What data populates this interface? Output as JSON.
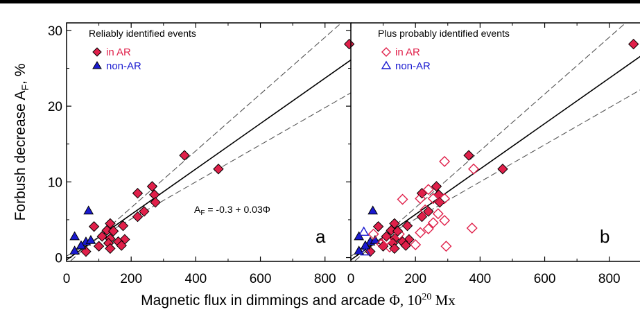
{
  "colors": {
    "in_ar": "#e0204a",
    "non_ar": "#1a1ad0",
    "fit": "#000000",
    "band": "#555555"
  },
  "icons": {
    "in_ar_filled": "diamond-filled-icon",
    "non_ar_filled": "triangle-filled-icon",
    "in_ar_open": "diamond-open-icon",
    "non_ar_open": "triangle-open-icon"
  },
  "chart_data": [
    {
      "type": "scatter",
      "panel_letter": "a",
      "legend_title": "Reliably identified events",
      "legend": [
        {
          "label": "in AR",
          "marker": "diamond",
          "filled": true,
          "color": "#e0204a"
        },
        {
          "label": "non-AR",
          "marker": "triangle",
          "filled": true,
          "color": "#1a1ad0"
        }
      ],
      "formula": {
        "lhs": "A",
        "sub": "F",
        "rhs": " = -0.3 + 0.03Φ"
      },
      "ylabel": {
        "text": "Forbush decrease A",
        "sub": "F",
        "suffix": ", %"
      },
      "xlabel": {
        "text": "Magnetic flux in dimmings and arcade  ",
        "serif": "Φ, 10",
        "sup": "20",
        "serif2": " Mx"
      },
      "xlim": [
        0,
        880
      ],
      "ylim": [
        -0.5,
        31
      ],
      "xticks": [
        0,
        200,
        400,
        600,
        800
      ],
      "yticks": [
        0,
        10,
        20,
        30
      ],
      "fit_line": {
        "intercept": -0.3,
        "slope": 0.03
      },
      "band_upper": {
        "intercept": -0.9,
        "slope": 0.0375
      },
      "band_lower": {
        "intercept": 0.2,
        "slope": 0.0245
      },
      "series": [
        {
          "name": "in AR",
          "marker": "diamond",
          "filled": true,
          "color": "#e0204a",
          "points": [
            [
              875,
              28.2
            ],
            [
              365,
              13.5
            ],
            [
              470,
              11.7
            ],
            [
              265,
              9.4
            ],
            [
              220,
              8.5
            ],
            [
              272,
              8.3
            ],
            [
              275,
              7.3
            ],
            [
              220,
              5.4
            ],
            [
              240,
              6.1
            ],
            [
              135,
              4.5
            ],
            [
              175,
              4.2
            ],
            [
              85,
              4.1
            ],
            [
              125,
              3.6
            ],
            [
              145,
              3.5
            ],
            [
              110,
              2.8
            ],
            [
              135,
              2.5
            ],
            [
              180,
              2.4
            ],
            [
              160,
              2.1
            ],
            [
              130,
              1.9
            ],
            [
              100,
              1.5
            ],
            [
              135,
              1.2
            ],
            [
              170,
              1.6
            ],
            [
              60,
              0.8
            ]
          ]
        },
        {
          "name": "non-AR",
          "marker": "triangle",
          "filled": true,
          "color": "#1a1ad0",
          "points": [
            [
              68,
              6.2
            ],
            [
              25,
              2.8
            ],
            [
              60,
              2.1
            ],
            [
              75,
              2.3
            ],
            [
              45,
              1.6
            ],
            [
              25,
              0.9
            ]
          ]
        }
      ]
    },
    {
      "type": "scatter",
      "panel_letter": "b",
      "legend_title": "Plus probably identified events",
      "legend": [
        {
          "label": "in AR",
          "marker": "diamond",
          "filled": false,
          "color": "#e0204a"
        },
        {
          "label": "non-AR",
          "marker": "triangle",
          "filled": false,
          "color": "#1a1ad0"
        }
      ],
      "xlim": [
        0,
        880
      ],
      "ylim": [
        -0.5,
        31
      ],
      "xticks": [
        0,
        200,
        400,
        600,
        800
      ],
      "yticks": [],
      "fit_line": {
        "intercept": -0.3,
        "slope": 0.03
      },
      "band_upper": {
        "intercept": -0.9,
        "slope": 0.0375
      },
      "band_lower": {
        "intercept": 0.2,
        "slope": 0.0245
      },
      "series": [
        {
          "name": "reliable in AR",
          "marker": "diamond",
          "filled": true,
          "color": "#e0204a",
          "points": [
            [
              875,
              28.2
            ],
            [
              365,
              13.5
            ],
            [
              470,
              11.7
            ],
            [
              265,
              9.4
            ],
            [
              220,
              8.5
            ],
            [
              272,
              8.3
            ],
            [
              275,
              7.3
            ],
            [
              220,
              5.4
            ],
            [
              240,
              6.1
            ],
            [
              135,
              4.5
            ],
            [
              175,
              4.2
            ],
            [
              85,
              4.1
            ],
            [
              125,
              3.6
            ],
            [
              145,
              3.5
            ],
            [
              110,
              2.8
            ],
            [
              135,
              2.5
            ],
            [
              180,
              2.4
            ],
            [
              160,
              2.1
            ],
            [
              130,
              1.9
            ],
            [
              100,
              1.5
            ],
            [
              135,
              1.2
            ],
            [
              170,
              1.6
            ],
            [
              60,
              0.8
            ]
          ]
        },
        {
          "name": "reliable non-AR",
          "marker": "triangle",
          "filled": true,
          "color": "#1a1ad0",
          "points": [
            [
              68,
              6.2
            ],
            [
              25,
              2.8
            ],
            [
              60,
              2.1
            ],
            [
              75,
              2.3
            ],
            [
              45,
              1.6
            ],
            [
              25,
              0.9
            ]
          ]
        },
        {
          "name": "probable in AR",
          "marker": "diamond",
          "filled": false,
          "color": "#e0204a",
          "points": [
            [
              290,
              12.7
            ],
            [
              380,
              11.7
            ],
            [
              240,
              9.0
            ],
            [
              215,
              7.8
            ],
            [
              160,
              7.7
            ],
            [
              255,
              7.8
            ],
            [
              290,
              7.8
            ],
            [
              230,
              6.3
            ],
            [
              270,
              5.8
            ],
            [
              255,
              4.6
            ],
            [
              290,
              4.9
            ],
            [
              375,
              3.9
            ],
            [
              215,
              3.3
            ],
            [
              150,
              3.1
            ],
            [
              240,
              3.8
            ],
            [
              110,
              2.3
            ],
            [
              120,
              1.4
            ],
            [
              295,
              1.5
            ],
            [
              200,
              1.7
            ],
            [
              95,
              1.8
            ],
            [
              70,
              3.1
            ]
          ]
        },
        {
          "name": "probable non-AR",
          "marker": "triangle",
          "filled": false,
          "color": "#1a1ad0",
          "points": [
            [
              40,
              3.4
            ],
            [
              45,
              0.8
            ]
          ]
        }
      ]
    }
  ]
}
